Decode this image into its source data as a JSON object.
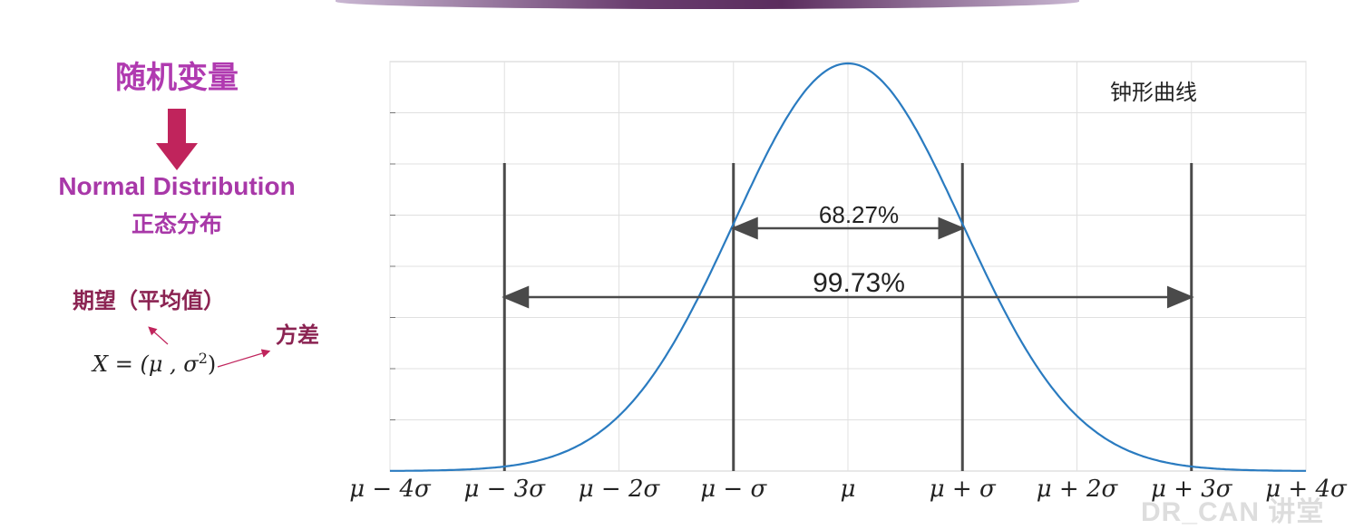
{
  "left_panel": {
    "title": "随机变量",
    "subtitle_en": "Normal Distribution",
    "subtitle_cn": "正态分布",
    "label_mean": "期望（平均值）",
    "label_variance": "方差",
    "formula_main": "X = (μ , σ",
    "formula_exp": "2",
    "formula_close": ")"
  },
  "chart_data": {
    "type": "line",
    "title": "钟形曲线",
    "xlabel": "",
    "ylabel": "",
    "xlim": [
      -4,
      4
    ],
    "grid": true,
    "tick_labels": [
      "μ − 4σ",
      "μ − 3σ",
      "μ − 2σ",
      "μ − σ",
      "μ",
      "μ + σ",
      "μ + 2σ",
      "μ + 3σ",
      "μ + 4σ"
    ],
    "series": [
      {
        "curve": "normal_pdf",
        "mean": 0,
        "sd": 1,
        "color": "#2a7bc0"
      }
    ],
    "markers_at_sigma": [
      -3,
      -1,
      1,
      3
    ],
    "annotations": [
      {
        "text": "68.27%",
        "from": -1,
        "to": 1
      },
      {
        "text": "99.73%",
        "from": -3,
        "to": 3
      }
    ]
  },
  "watermark": "DR_CAN 讲堂",
  "colors": {
    "title": "#b03ab0",
    "accent_dark": "#8b2352",
    "arrow_down": "#c0245c",
    "curve": "#2a7bc0",
    "marker": "#4a4a4a"
  }
}
